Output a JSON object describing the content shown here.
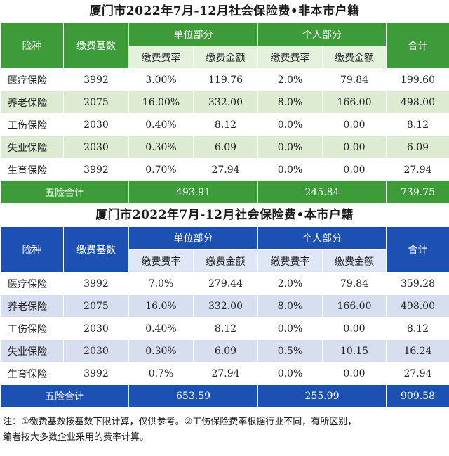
{
  "tables": [
    {
      "title": "厦门市2022年7月-12月社会保险费•非本市户籍",
      "headers": {
        "kind": "险种",
        "base": "缴费基数",
        "unit": "单位部分",
        "personal": "个人部分",
        "rate": "缴费费率",
        "amount": "缴费金额",
        "total": "合计"
      },
      "rows": [
        [
          "医疗保险",
          "3992",
          "3.00%",
          "119.76",
          "2.0%",
          "79.84",
          "199.60"
        ],
        [
          "养老保险",
          "2075",
          "16.00%",
          "332.00",
          "8.0%",
          "166.00",
          "498.00"
        ],
        [
          "工伤保险",
          "2030",
          "0.40%",
          "8.12",
          "0.0%",
          "0.00",
          "8.12"
        ],
        [
          "失业保险",
          "2030",
          "0.30%",
          "6.09",
          "0.0%",
          "0.00",
          "6.09"
        ],
        [
          "生育保险",
          "3992",
          "0.70%",
          "27.94",
          "0.0%",
          "0.00",
          "27.94"
        ]
      ],
      "summary": {
        "label": "五险合计",
        "unit_total": "493.91",
        "personal_total": "245.84",
        "grand_total": "739.75"
      }
    },
    {
      "title": "厦门市2022年7月-12月社会保险费•本市户籍",
      "headers": {
        "kind": "险种",
        "base": "缴费基数",
        "unit": "单位部分",
        "personal": "个人部分",
        "rate": "缴费费率",
        "amount": "缴费金额",
        "total": "合计"
      },
      "rows": [
        [
          "医疗保险",
          "3992",
          "7.0%",
          "279.44",
          "2.0%",
          "79.84",
          "359.28"
        ],
        [
          "养老保险",
          "2075",
          "16.0%",
          "332.00",
          "8.0%",
          "166.00",
          "498.00"
        ],
        [
          "工伤保险",
          "2030",
          "0.40%",
          "8.12",
          "0.0%",
          "0.00",
          "8.12"
        ],
        [
          "失业保险",
          "2030",
          "0.30%",
          "6.09",
          "0.5%",
          "10.15",
          "16.24"
        ],
        [
          "生育保险",
          "3992",
          "0.7%",
          "27.94",
          "0.0%",
          "0.00",
          "27.94"
        ]
      ],
      "summary": {
        "label": "五险合计",
        "unit_total": "653.59",
        "personal_total": "255.99",
        "grand_total": "909.58"
      }
    }
  ],
  "note": {
    "line1": "注：①缴费基数按基数下限计算，仅供参考。②工伤保险费率根据行业不同，有所区别，",
    "line2": "编者按大多数企业采用的费率计算。"
  },
  "colors": {
    "green_header": "#3d9b3a",
    "green_band": "#dcebd2",
    "blue_header": "#1d50b3",
    "blue_band": "#d6def0"
  }
}
